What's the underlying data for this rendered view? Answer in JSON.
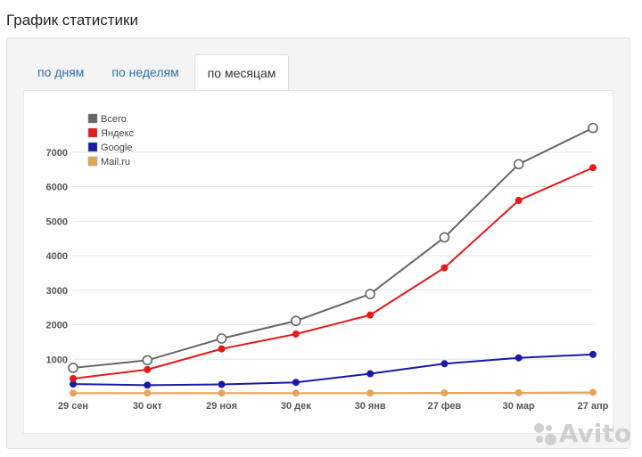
{
  "page": {
    "title": "График статистики"
  },
  "tabs": [
    {
      "label": "по дням",
      "active": false
    },
    {
      "label": "по неделям",
      "active": false
    },
    {
      "label": "по месяцам",
      "active": true
    }
  ],
  "watermark": {
    "text": "Avito"
  },
  "chart_data": {
    "type": "line",
    "title": "",
    "xlabel": "",
    "ylabel": "",
    "ylim": [
      0,
      8000
    ],
    "yticks": [
      1000,
      2000,
      3000,
      4000,
      5000,
      6000,
      7000
    ],
    "grid": true,
    "legend_position": "top-left",
    "categories": [
      "29 сен",
      "30 окт",
      "29 ноя",
      "30 дек",
      "30 янв",
      "27 фев",
      "30 мар",
      "27 апр"
    ],
    "series": [
      {
        "name": "Всего",
        "color": "#666666",
        "marker": "hollow",
        "values": [
          750,
          970,
          1600,
          2110,
          2890,
          4530,
          6650,
          7700
        ]
      },
      {
        "name": "Яндекс",
        "color": "#e31b1b",
        "marker": "filled",
        "values": [
          440,
          700,
          1300,
          1730,
          2280,
          3650,
          5600,
          6550
        ]
      },
      {
        "name": "Google",
        "color": "#1a1aa6",
        "marker": "filled",
        "values": [
          280,
          250,
          270,
          330,
          580,
          870,
          1040,
          1140
        ]
      },
      {
        "name": "Mail.ru",
        "color": "#e8a55a",
        "marker": "filled",
        "values": [
          20,
          20,
          20,
          20,
          20,
          25,
          30,
          40
        ]
      }
    ]
  }
}
